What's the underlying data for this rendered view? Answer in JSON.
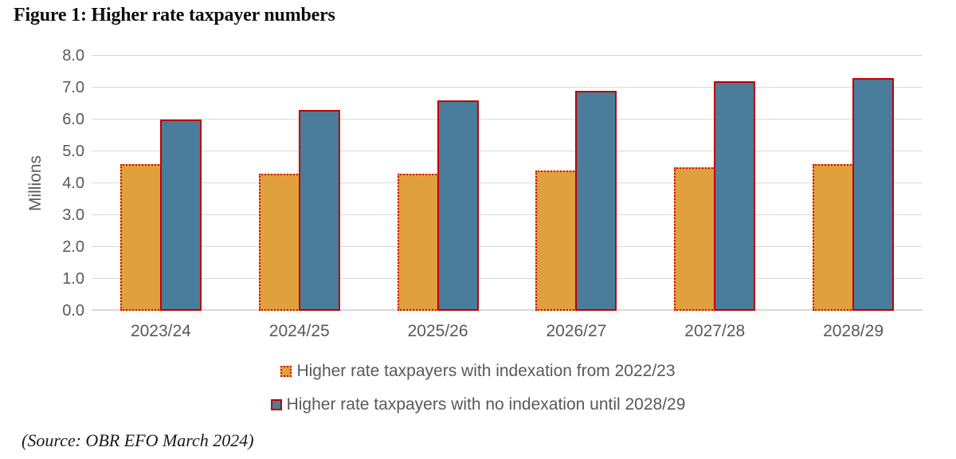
{
  "figure": {
    "source_note": "(Source: OBR EFO March 2024)"
  },
  "chart_data": {
    "type": "bar",
    "title": "Figure 1: Higher rate taxpayer numbers",
    "xlabel": "",
    "ylabel": "Millions",
    "ylim": [
      0,
      8
    ],
    "ytick_step": 1,
    "ytick_labels": [
      "0.0",
      "1.0",
      "2.0",
      "3.0",
      "4.0",
      "5.0",
      "6.0",
      "7.0",
      "8.0"
    ],
    "grid": true,
    "legend_position": "bottom",
    "categories": [
      "2023/24",
      "2024/25",
      "2025/26",
      "2026/27",
      "2027/28",
      "2028/29"
    ],
    "series": [
      {
        "name": "Higher rate taxpayers with indexation from 2022/23",
        "values": [
          4.6,
          4.3,
          4.3,
          4.4,
          4.5,
          4.6
        ],
        "fill": "#E0A03E",
        "border_color": "#D90000",
        "border_style": "dotted"
      },
      {
        "name": "Higher rate taxpayers with no indexation until 2028/29",
        "values": [
          6.0,
          6.3,
          6.6,
          6.9,
          7.2,
          7.3
        ],
        "fill": "#4A7C9B",
        "border_color": "#C00000",
        "border_style": "solid"
      }
    ],
    "colors": {
      "gridline": "#D9D9D9",
      "axis_text": "#595959"
    }
  }
}
